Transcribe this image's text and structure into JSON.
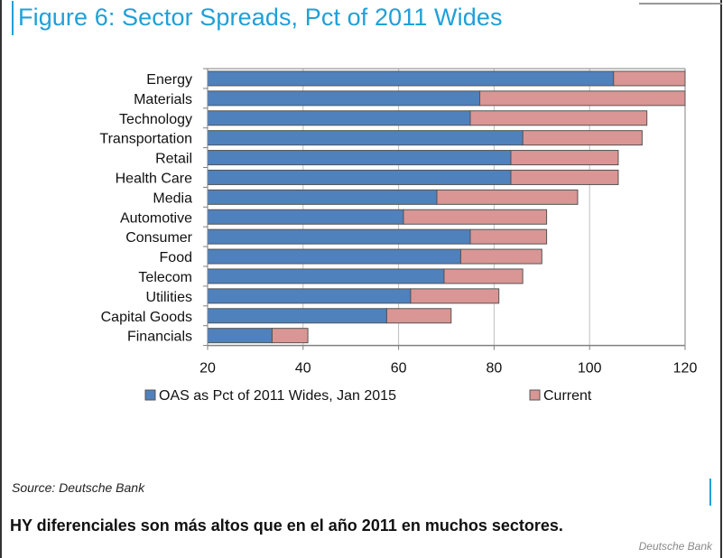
{
  "title": "Figure 6: Sector Spreads, Pct of 2011 Wides",
  "source": "Source: Deutsche Bank",
  "caption": "HY diferenciales son más altos que en el año 2011 en muchos sectores.",
  "credit": "Deutsche Bank",
  "colors": {
    "accent": "#1fa0d8",
    "series1": "#4f81bd",
    "series2": "#d99694",
    "bar_border": "#555555",
    "grid": "#bfbfbf"
  },
  "chart_data": {
    "type": "bar",
    "orientation": "horizontal",
    "title": "Figure 6: Sector Spreads, Pct of 2011 Wides",
    "xlabel": "",
    "ylabel": "",
    "xlim": [
      20,
      120
    ],
    "xticks": [
      "20",
      "40",
      "60",
      "80",
      "100",
      "120"
    ],
    "grid": true,
    "legend_position": "bottom",
    "categories": [
      "Energy",
      "Materials",
      "Technology",
      "Transportation",
      "Retail",
      "Health Care",
      "Media",
      "Automotive",
      "Consumer",
      "Food",
      "Telecom",
      "Utilities",
      "Capital Goods",
      "Financials"
    ],
    "series": [
      {
        "name": "OAS as Pct of 2011 Wides, Jan 2015",
        "values": [
          105,
          77,
          75,
          86,
          83.5,
          83.5,
          68,
          61,
          75,
          73,
          69.5,
          62.5,
          57.5,
          33.5
        ]
      },
      {
        "name": "Current",
        "values": [
          120,
          120,
          112,
          111,
          106,
          106,
          97.5,
          91,
          91,
          90,
          86,
          81,
          71,
          41
        ]
      }
    ]
  }
}
